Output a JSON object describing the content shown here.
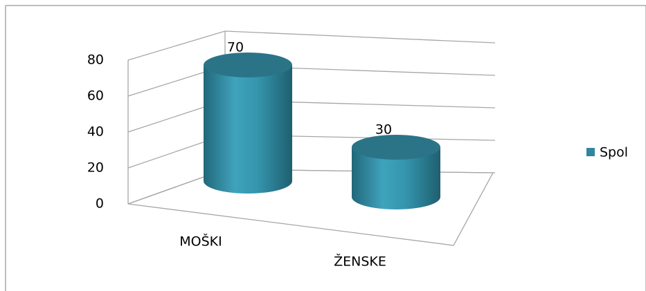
{
  "chart_data": {
    "type": "bar3d",
    "categories": [
      "MOŠKI",
      "ŽENSKE"
    ],
    "series": [
      {
        "name": "Spol",
        "color": "#31859c",
        "values": [
          70,
          30
        ]
      }
    ],
    "ylim": [
      0,
      80
    ],
    "yticks": [
      0,
      20,
      40,
      60,
      80
    ],
    "grid": true,
    "legend": "right"
  }
}
